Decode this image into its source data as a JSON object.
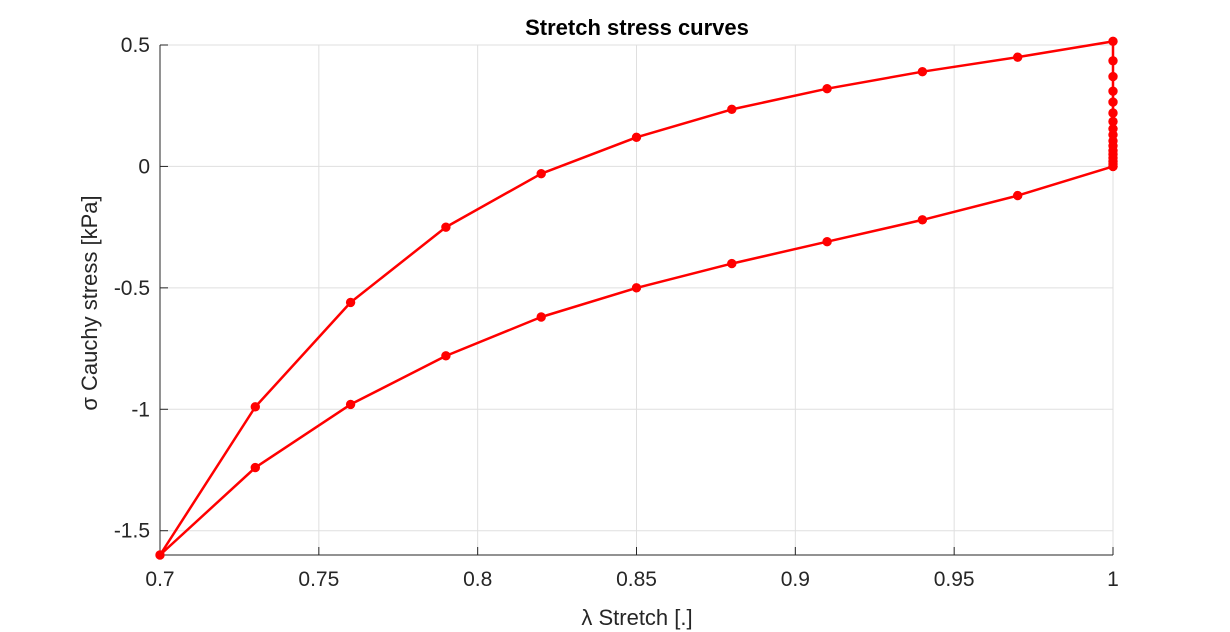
{
  "chart_data": {
    "type": "line",
    "title": "Stretch stress curves",
    "xlabel": "λ Stretch [.]",
    "ylabel": "σ Cauchy stress [kPa]",
    "xlim": [
      0.7,
      1.0
    ],
    "ylim": [
      -1.6,
      0.5
    ],
    "grid": true,
    "x_ticks": [
      0.7,
      0.75,
      0.8,
      0.85,
      0.9,
      0.95,
      1.0
    ],
    "x_tick_labels": [
      "0.7",
      "0.75",
      "0.8",
      "0.85",
      "0.9",
      "0.95",
      "1"
    ],
    "y_ticks": [
      -1.5,
      -1,
      -0.5,
      0,
      0.5
    ],
    "y_tick_labels": [
      "-1.5",
      "-1",
      "-0.5",
      "0",
      "0.5"
    ],
    "color": "#ff0000",
    "series": [
      {
        "points": [
          [
            1.0,
            0.0
          ],
          [
            0.97,
            -0.12
          ],
          [
            0.94,
            -0.22
          ],
          [
            0.91,
            -0.31
          ],
          [
            0.88,
            -0.4
          ],
          [
            0.85,
            -0.5
          ],
          [
            0.82,
            -0.62
          ],
          [
            0.79,
            -0.78
          ],
          [
            0.76,
            -0.98
          ],
          [
            0.73,
            -1.24
          ],
          [
            0.7,
            -1.6
          ],
          [
            0.73,
            -0.99
          ],
          [
            0.76,
            -0.56
          ],
          [
            0.79,
            -0.25
          ],
          [
            0.82,
            -0.03
          ],
          [
            0.85,
            0.12
          ],
          [
            0.88,
            0.235
          ],
          [
            0.91,
            0.32
          ],
          [
            0.94,
            0.39
          ],
          [
            0.97,
            0.45
          ],
          [
            1.0,
            0.515
          ],
          [
            1.0,
            0.435
          ],
          [
            1.0,
            0.37
          ],
          [
            1.0,
            0.31
          ],
          [
            1.0,
            0.265
          ],
          [
            1.0,
            0.22
          ],
          [
            1.0,
            0.185
          ],
          [
            1.0,
            0.155
          ],
          [
            1.0,
            0.13
          ],
          [
            1.0,
            0.105
          ],
          [
            1.0,
            0.085
          ],
          [
            1.0,
            0.065
          ],
          [
            1.0,
            0.05
          ],
          [
            1.0,
            0.035
          ],
          [
            1.0,
            0.02
          ],
          [
            1.0,
            0.01
          ],
          [
            1.0,
            0.0
          ]
        ]
      }
    ]
  }
}
